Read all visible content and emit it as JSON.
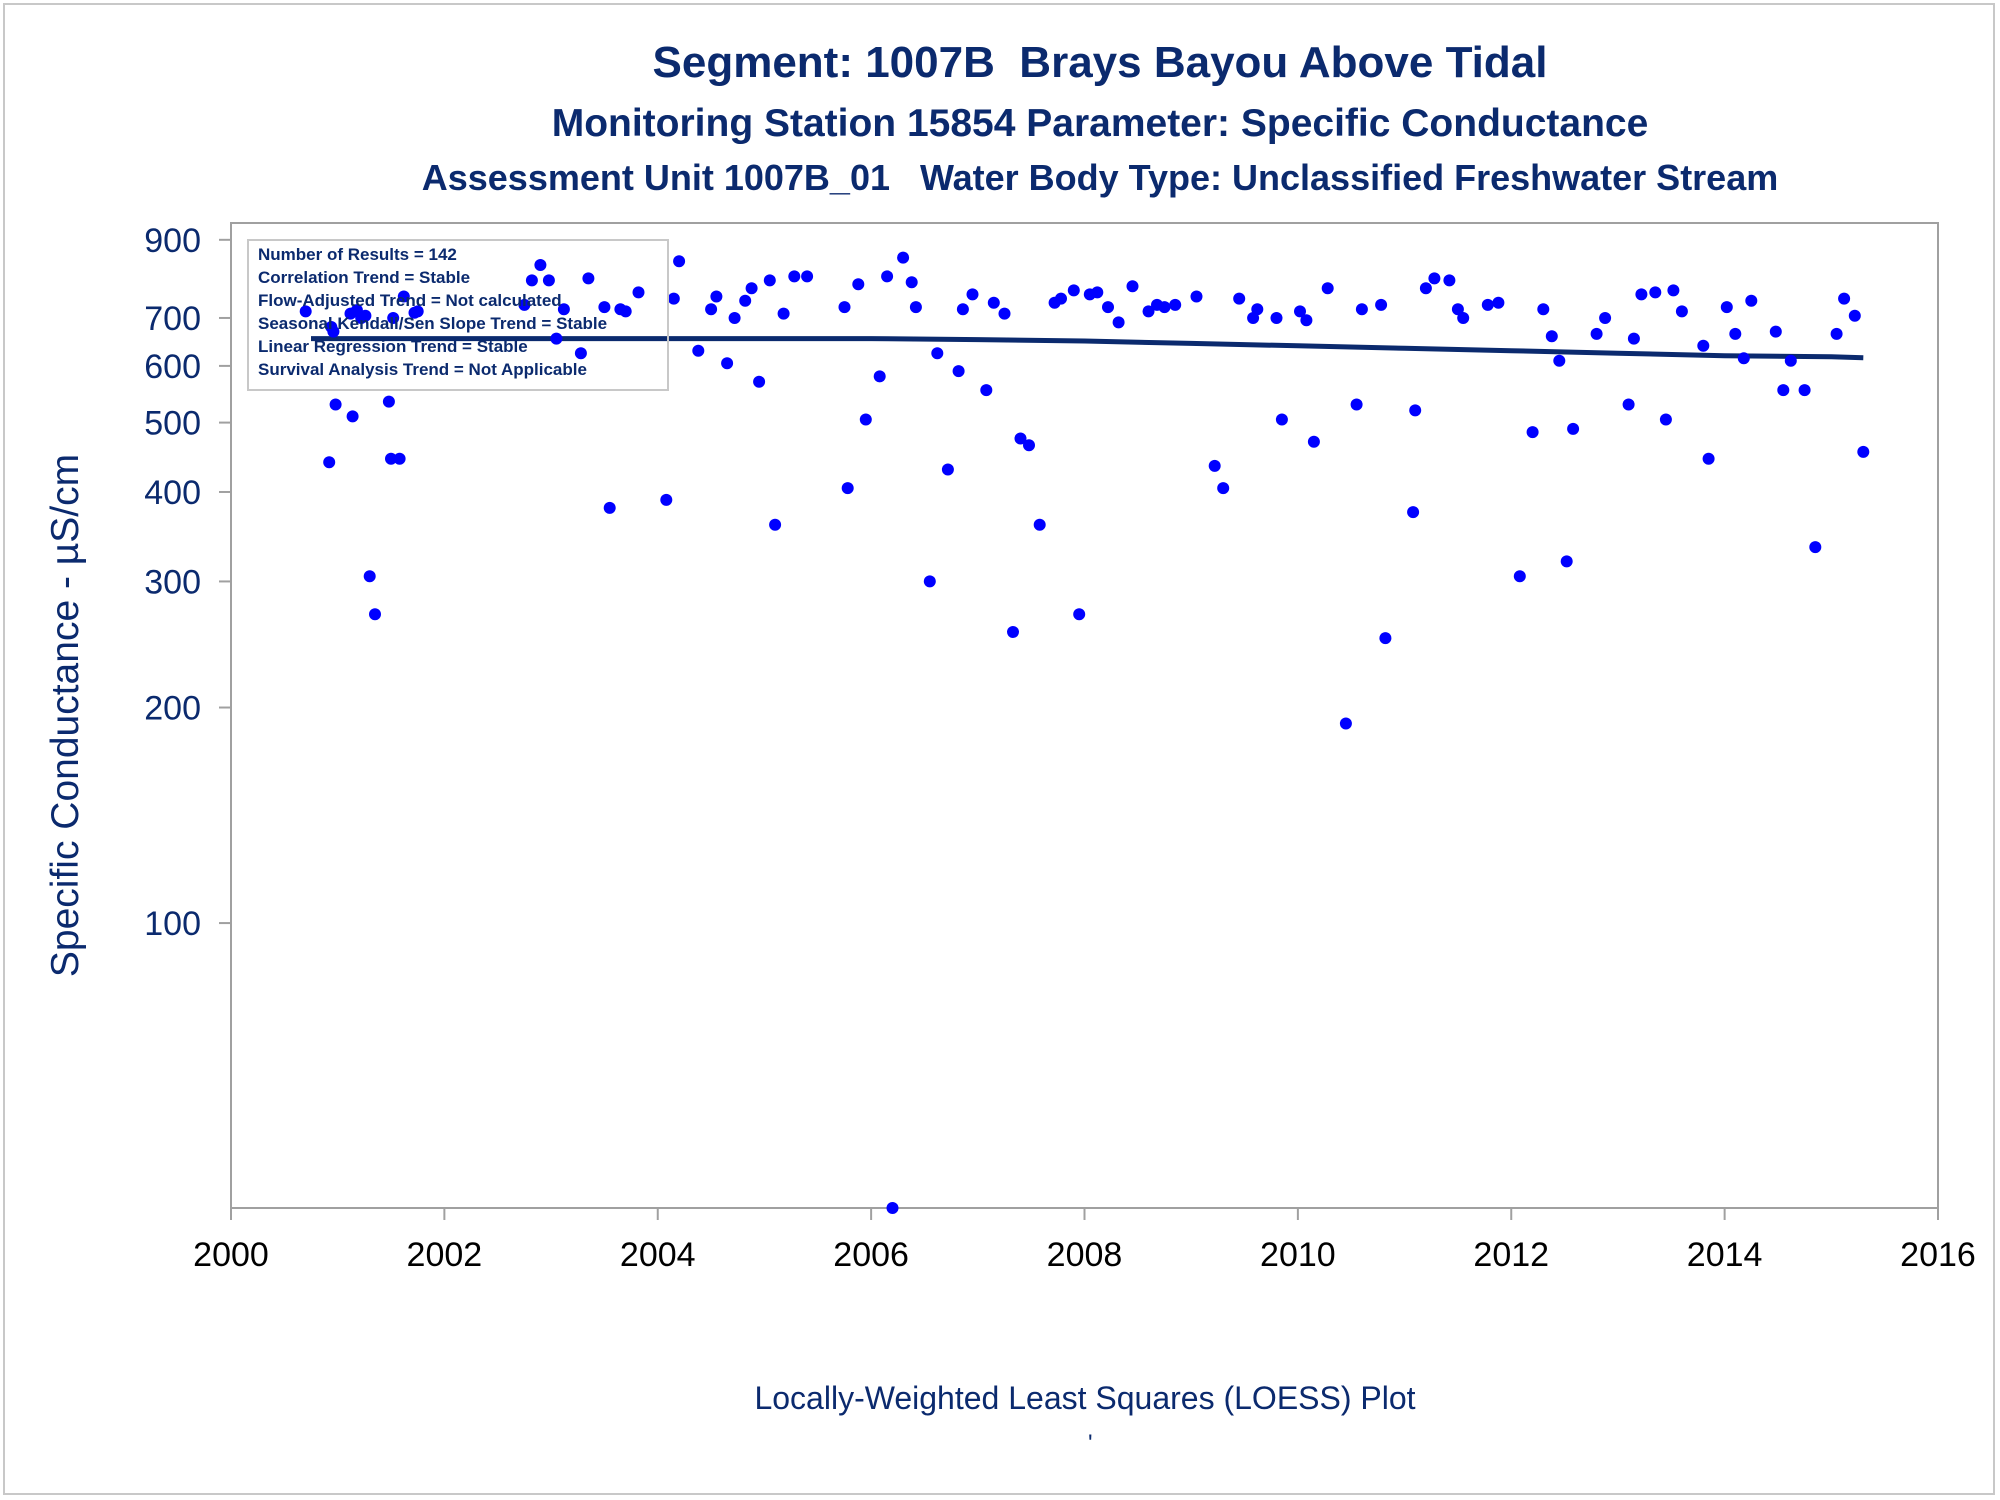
{
  "title": "Segment: 1007B  Brays Bayou Above Tidal",
  "subtitle": "Monitoring Station 15854 Parameter: Specific Conductance",
  "subtitle2": "Assessment Unit 1007B_01   Water Body Type: Unclassified Freshwater Stream",
  "footnote": "Locally-Weighted Least Squares (LOESS) Plot",
  "footnote_mark": "'",
  "colors": {
    "text": "#0b2a6e",
    "points": "#0000ff",
    "line": "#0b2a6e",
    "axis": "#a0a0a0"
  },
  "legend_box": {
    "lines": [
      "Number of Results = 142",
      "Correlation Trend = Stable",
      "Flow-Adjusted Trend = Not calculated",
      "Seasonal Kendall/Sen Slope Trend = Stable",
      "Linear Regression Trend = Stable",
      "Survival Analysis Trend = Not Applicable"
    ],
    "placement": "top-left"
  },
  "chart_data": {
    "type": "scatter",
    "xlabel": "",
    "ylabel": "Specific Conductance -  µS/cm",
    "xlim": [
      2000,
      2016
    ],
    "ylim": [
      40,
      950
    ],
    "yscale": "log",
    "xticks": [
      2000,
      2002,
      2004,
      2006,
      2008,
      2010,
      2012,
      2014,
      2016
    ],
    "yticks": [
      100,
      200,
      300,
      400,
      500,
      600,
      700,
      900
    ],
    "grid": false,
    "series": [
      {
        "type": "scatter",
        "points": [
          [
            2000.7,
            715
          ],
          [
            2000.92,
            440
          ],
          [
            2000.94,
            680
          ],
          [
            2000.96,
            670
          ],
          [
            2000.98,
            530
          ],
          [
            2001.12,
            710
          ],
          [
            2001.14,
            510
          ],
          [
            2001.18,
            718
          ],
          [
            2001.22,
            700
          ],
          [
            2001.26,
            705
          ],
          [
            2001.3,
            305
          ],
          [
            2001.35,
            270
          ],
          [
            2001.48,
            535
          ],
          [
            2001.5,
            445
          ],
          [
            2001.52,
            700
          ],
          [
            2001.58,
            445
          ],
          [
            2001.62,
            750
          ],
          [
            2001.72,
            712
          ],
          [
            2001.75,
            715
          ],
          [
            2002.75,
            730
          ],
          [
            2002.82,
            790
          ],
          [
            2002.9,
            830
          ],
          [
            2002.98,
            790
          ],
          [
            2003.05,
            655
          ],
          [
            2003.12,
            720
          ],
          [
            2003.28,
            625
          ],
          [
            2003.35,
            795
          ],
          [
            2003.5,
            725
          ],
          [
            2003.55,
            380
          ],
          [
            2003.65,
            720
          ],
          [
            2003.7,
            715
          ],
          [
            2003.82,
            760
          ],
          [
            2004.08,
            390
          ],
          [
            2004.15,
            745
          ],
          [
            2004.2,
            840
          ],
          [
            2004.38,
            630
          ],
          [
            2004.5,
            720
          ],
          [
            2004.55,
            750
          ],
          [
            2004.65,
            605
          ],
          [
            2004.72,
            700
          ],
          [
            2004.82,
            740
          ],
          [
            2004.88,
            770
          ],
          [
            2004.95,
            570
          ],
          [
            2005.05,
            790
          ],
          [
            2005.1,
            360
          ],
          [
            2005.18,
            710
          ],
          [
            2005.28,
            800
          ],
          [
            2005.4,
            800
          ],
          [
            2005.75,
            725
          ],
          [
            2005.78,
            405
          ],
          [
            2005.88,
            780
          ],
          [
            2005.95,
            505
          ],
          [
            2006.08,
            580
          ],
          [
            2006.15,
            800
          ],
          [
            2006.2,
            40
          ],
          [
            2006.3,
            850
          ],
          [
            2006.38,
            785
          ],
          [
            2006.42,
            725
          ],
          [
            2006.55,
            300
          ],
          [
            2006.62,
            625
          ],
          [
            2006.72,
            430
          ],
          [
            2006.82,
            590
          ],
          [
            2006.86,
            720
          ],
          [
            2006.95,
            755
          ],
          [
            2007.08,
            555
          ],
          [
            2007.15,
            735
          ],
          [
            2007.25,
            710
          ],
          [
            2007.33,
            255
          ],
          [
            2007.4,
            475
          ],
          [
            2007.48,
            465
          ],
          [
            2007.58,
            360
          ],
          [
            2007.72,
            735
          ],
          [
            2007.78,
            745
          ],
          [
            2007.9,
            765
          ],
          [
            2007.95,
            270
          ],
          [
            2008.05,
            755
          ],
          [
            2008.12,
            760
          ],
          [
            2008.22,
            725
          ],
          [
            2008.32,
            690
          ],
          [
            2008.45,
            775
          ],
          [
            2008.6,
            715
          ],
          [
            2008.68,
            730
          ],
          [
            2008.75,
            725
          ],
          [
            2008.85,
            730
          ],
          [
            2009.05,
            750
          ],
          [
            2009.22,
            435
          ],
          [
            2009.3,
            405
          ],
          [
            2009.45,
            745
          ],
          [
            2009.58,
            700
          ],
          [
            2009.62,
            720
          ],
          [
            2009.8,
            700
          ],
          [
            2009.85,
            505
          ],
          [
            2010.02,
            715
          ],
          [
            2010.08,
            695
          ],
          [
            2010.15,
            470
          ],
          [
            2010.28,
            770
          ],
          [
            2010.45,
            190
          ],
          [
            2010.55,
            530
          ],
          [
            2010.6,
            720
          ],
          [
            2010.78,
            730
          ],
          [
            2010.82,
            250
          ],
          [
            2011.08,
            375
          ],
          [
            2011.1,
            520
          ],
          [
            2011.2,
            770
          ],
          [
            2011.28,
            795
          ],
          [
            2011.42,
            790
          ],
          [
            2011.5,
            720
          ],
          [
            2011.55,
            700
          ],
          [
            2011.78,
            730
          ],
          [
            2011.88,
            735
          ],
          [
            2012.08,
            305
          ],
          [
            2012.2,
            485
          ],
          [
            2012.3,
            720
          ],
          [
            2012.38,
            660
          ],
          [
            2012.45,
            610
          ],
          [
            2012.52,
            320
          ],
          [
            2012.58,
            490
          ],
          [
            2012.8,
            665
          ],
          [
            2012.88,
            700
          ],
          [
            2013.1,
            530
          ],
          [
            2013.15,
            655
          ],
          [
            2013.22,
            755
          ],
          [
            2013.35,
            760
          ],
          [
            2013.45,
            505
          ],
          [
            2013.52,
            765
          ],
          [
            2013.6,
            715
          ],
          [
            2013.8,
            640
          ],
          [
            2013.85,
            445
          ],
          [
            2014.02,
            725
          ],
          [
            2014.1,
            665
          ],
          [
            2014.18,
            615
          ],
          [
            2014.25,
            740
          ],
          [
            2014.48,
            670
          ],
          [
            2014.55,
            555
          ],
          [
            2014.62,
            610
          ],
          [
            2014.75,
            555
          ],
          [
            2014.85,
            335
          ],
          [
            2015.05,
            665
          ],
          [
            2015.12,
            745
          ],
          [
            2015.22,
            705
          ],
          [
            2015.3,
            455
          ]
        ]
      },
      {
        "type": "line",
        "points": [
          [
            2000.75,
            655
          ],
          [
            2002.0,
            655
          ],
          [
            2004.0,
            655
          ],
          [
            2006.0,
            655
          ],
          [
            2007.0,
            653
          ],
          [
            2008.0,
            650
          ],
          [
            2009.0,
            645
          ],
          [
            2010.0,
            640
          ],
          [
            2011.0,
            635
          ],
          [
            2012.0,
            630
          ],
          [
            2013.0,
            625
          ],
          [
            2014.0,
            620
          ],
          [
            2015.0,
            618
          ],
          [
            2015.3,
            616
          ]
        ]
      }
    ]
  }
}
